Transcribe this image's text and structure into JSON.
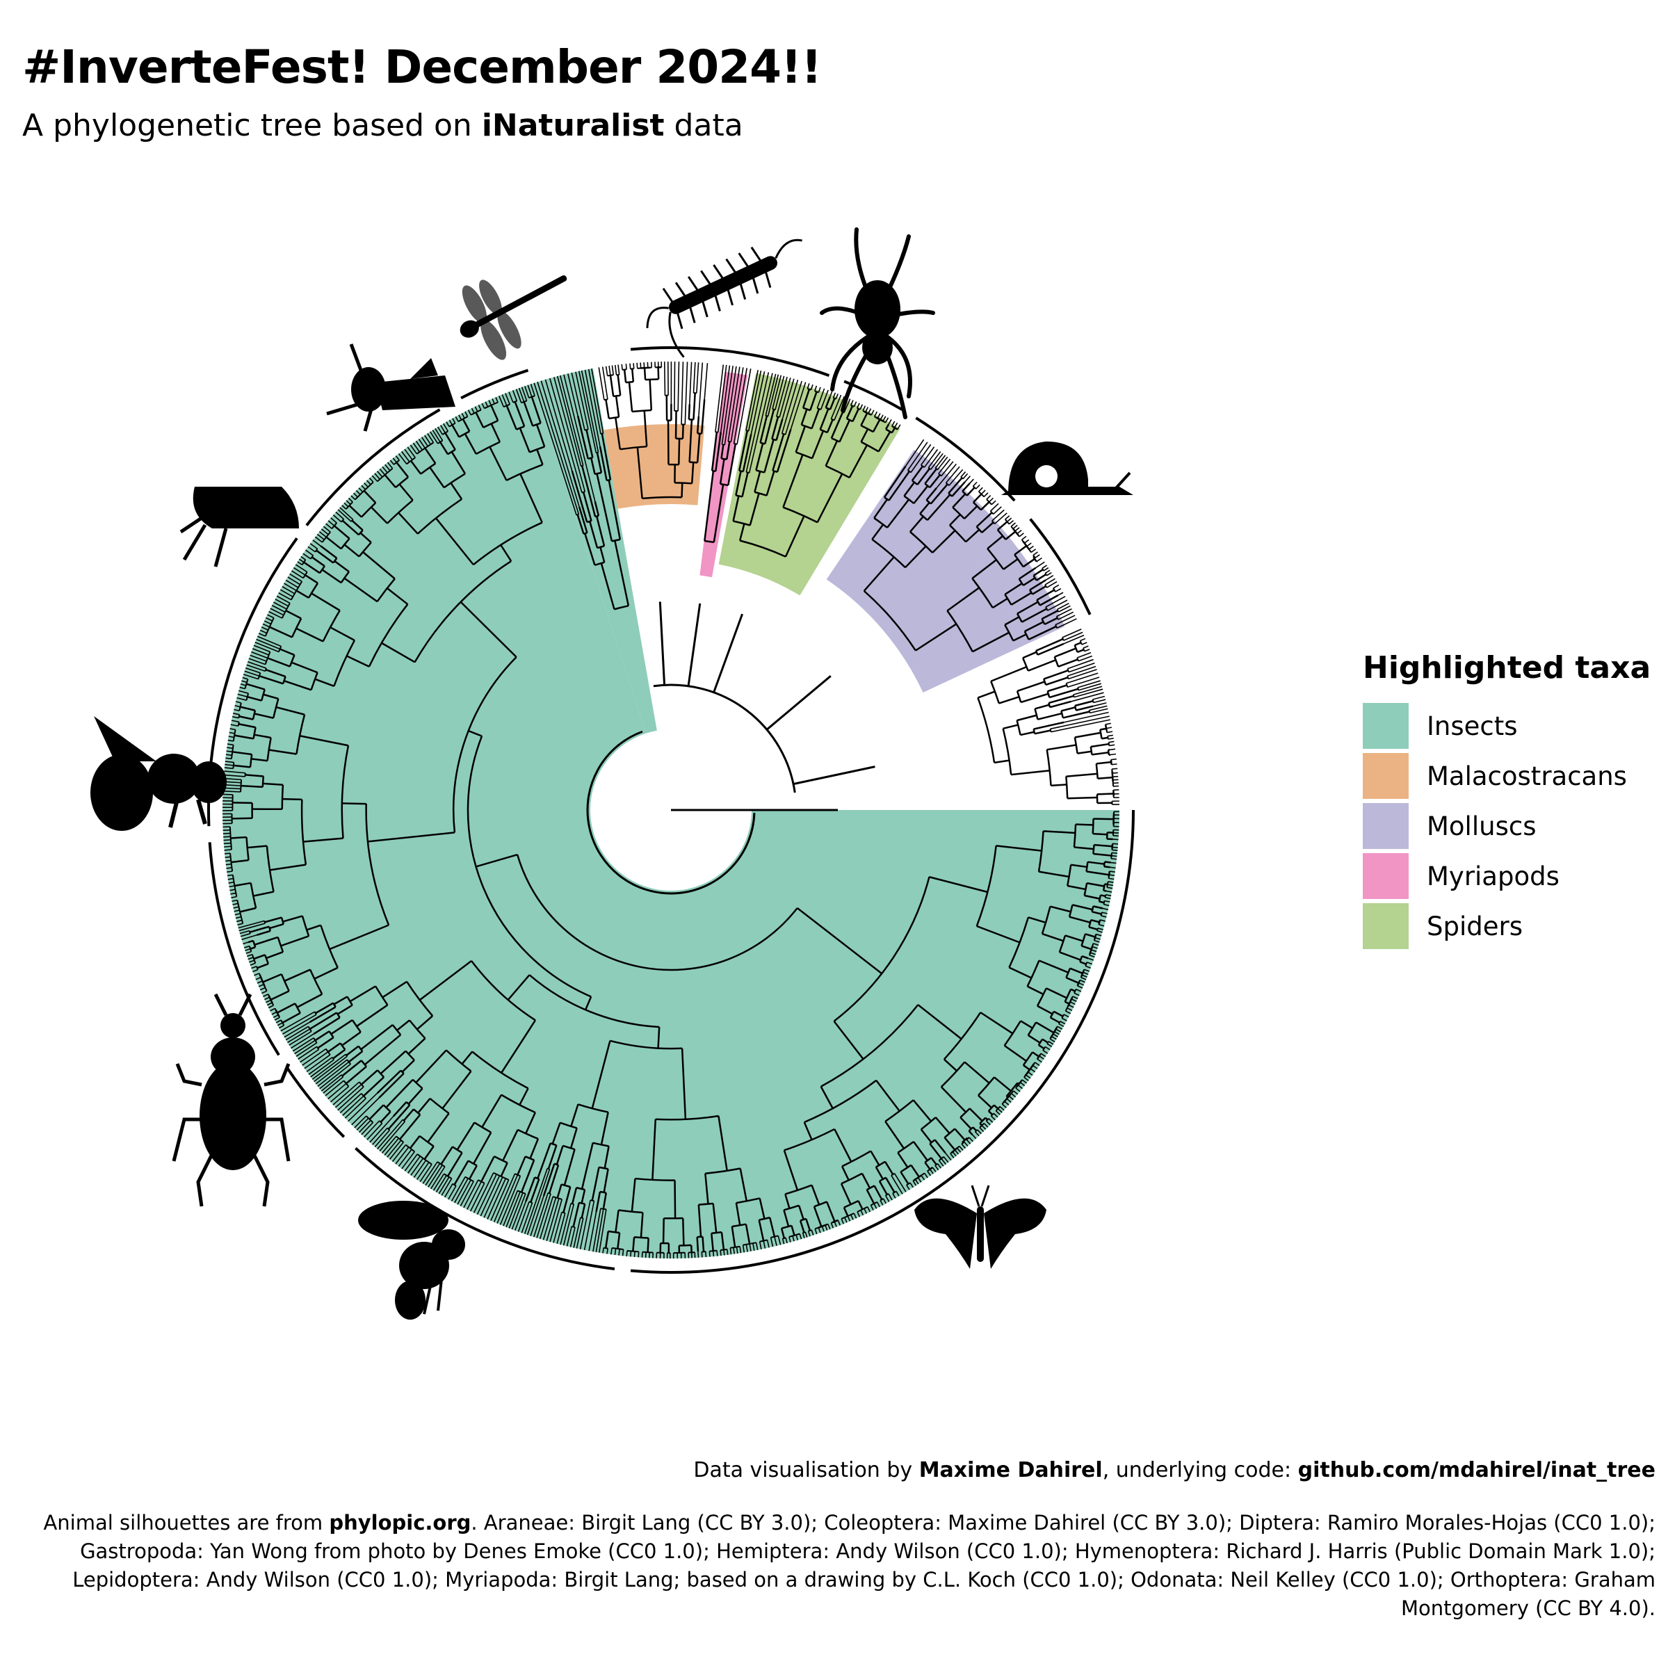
{
  "title": "#InverteFest! December 2024!!",
  "subtitle": {
    "prefix": "A phylogenetic tree based on",
    "bold": "iNaturalist",
    "suffix": "data"
  },
  "legend": {
    "title": "Highlighted taxa",
    "items": [
      {
        "label": "Insects",
        "color": "#8ecdb9"
      },
      {
        "label": "Malacostracans",
        "color": "#ebb383"
      },
      {
        "label": "Molluscs",
        "color": "#bbb8d9"
      },
      {
        "label": "Myriapods",
        "color": "#f195c5"
      },
      {
        "label": "Spiders",
        "color": "#b4d290"
      }
    ]
  },
  "silhouettes": [
    {
      "name": "dragonfly-icon",
      "taxon": "Odonata"
    },
    {
      "name": "millipede-icon",
      "taxon": "Myriapoda"
    },
    {
      "name": "spider-icon",
      "taxon": "Araneae"
    },
    {
      "name": "grasshopper-icon",
      "taxon": "Orthoptera"
    },
    {
      "name": "snail-icon",
      "taxon": "Gastropoda"
    },
    {
      "name": "bug-icon",
      "taxon": "Hemiptera"
    },
    {
      "name": "bee-icon",
      "taxon": "Hymenoptera"
    },
    {
      "name": "beetle-icon",
      "taxon": "Coleoptera"
    },
    {
      "name": "fly-icon",
      "taxon": "Diptera"
    },
    {
      "name": "butterfly-icon",
      "taxon": "Lepidoptera"
    }
  ],
  "credit": {
    "prefix": "Data visualisation by",
    "author": "Maxime Dahirel",
    "middle": ", underlying code:",
    "repo": "github.com/mdahirel/inat_tree"
  },
  "attribution": {
    "prefix": "Animal silhouettes are from",
    "site": "phylopic.org",
    "text": ". Araneae: Birgit Lang (CC BY 3.0); Coleoptera: Maxime Dahirel (CC BY 3.0); Diptera: Ramiro Morales-Hojas (CC0 1.0); Gastropoda: Yan Wong from photo by Denes Emoke (CC0 1.0); Hemiptera: Andy Wilson (CC0 1.0); Hymenoptera: Richard J. Harris (Public Domain Mark 1.0); Lepidoptera: Andy Wilson (CC0 1.0); Myriapoda: Birgit Lang; based on a drawing by C.L. Koch (CC0 1.0); Odonata: Neil Kelley (CC0 1.0); Orthoptera: Graham Montgomery (CC BY 4.0)."
  }
}
